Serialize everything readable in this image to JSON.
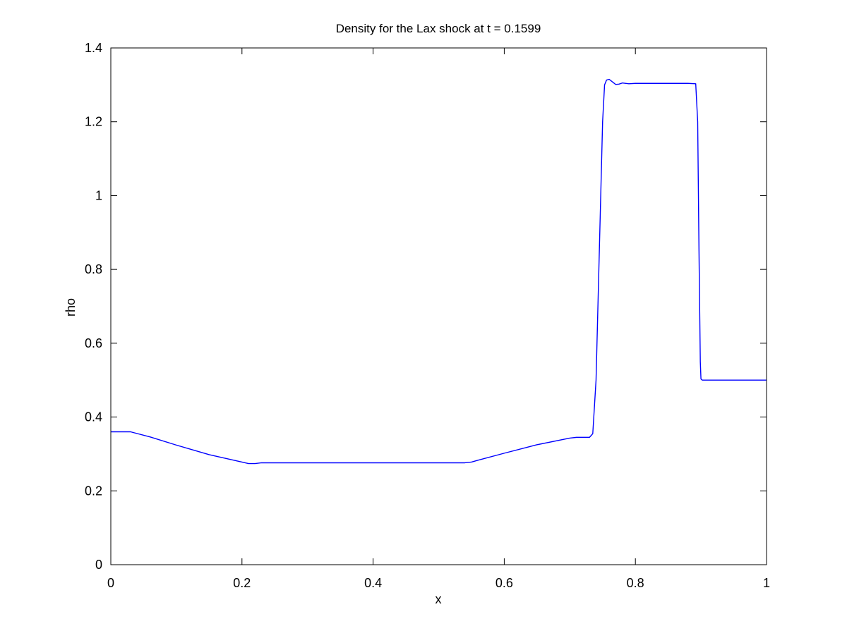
{
  "chart_data": {
    "type": "line",
    "title": "Density for the Lax shock at t = 0.1599",
    "xlabel": "x",
    "ylabel": "rho",
    "xlim": [
      0,
      1
    ],
    "ylim": [
      0,
      1.4
    ],
    "xticks": [
      0,
      0.2,
      0.4,
      0.6,
      0.8,
      1
    ],
    "xtick_labels": [
      "0",
      "0.2",
      "0.4",
      "0.6",
      "0.8",
      "1"
    ],
    "yticks": [
      0,
      0.2,
      0.4,
      0.6,
      0.8,
      1,
      1.2,
      1.4
    ],
    "ytick_labels": [
      "0",
      "0.2",
      "0.4",
      "0.6",
      "0.8",
      "1",
      "1.2",
      "1.4"
    ],
    "grid": false,
    "line_color": "#0000ff",
    "series": [
      {
        "x": [
          0,
          0.03,
          0.06,
          0.1,
          0.15,
          0.2,
          0.21,
          0.22,
          0.23,
          0.3,
          0.4,
          0.5,
          0.54,
          0.55,
          0.56,
          0.6,
          0.65,
          0.7,
          0.71,
          0.72,
          0.73,
          0.735,
          0.74,
          0.745,
          0.75,
          0.753,
          0.756,
          0.76,
          0.765,
          0.77,
          0.775,
          0.78,
          0.79,
          0.8,
          0.85,
          0.88,
          0.892,
          0.895,
          0.897,
          0.899,
          0.9,
          0.902,
          0.905,
          0.93,
          0.96,
          1.0
        ],
        "y": [
          0.36,
          0.36,
          0.346,
          0.324,
          0.298,
          0.278,
          0.274,
          0.274,
          0.276,
          0.276,
          0.276,
          0.276,
          0.276,
          0.278,
          0.283,
          0.302,
          0.325,
          0.343,
          0.345,
          0.345,
          0.345,
          0.355,
          0.5,
          0.85,
          1.2,
          1.3,
          1.313,
          1.315,
          1.308,
          1.301,
          1.302,
          1.305,
          1.303,
          1.304,
          1.304,
          1.304,
          1.303,
          1.2,
          0.85,
          0.55,
          0.503,
          0.5,
          0.5,
          0.5,
          0.5,
          0.5
        ]
      }
    ]
  }
}
